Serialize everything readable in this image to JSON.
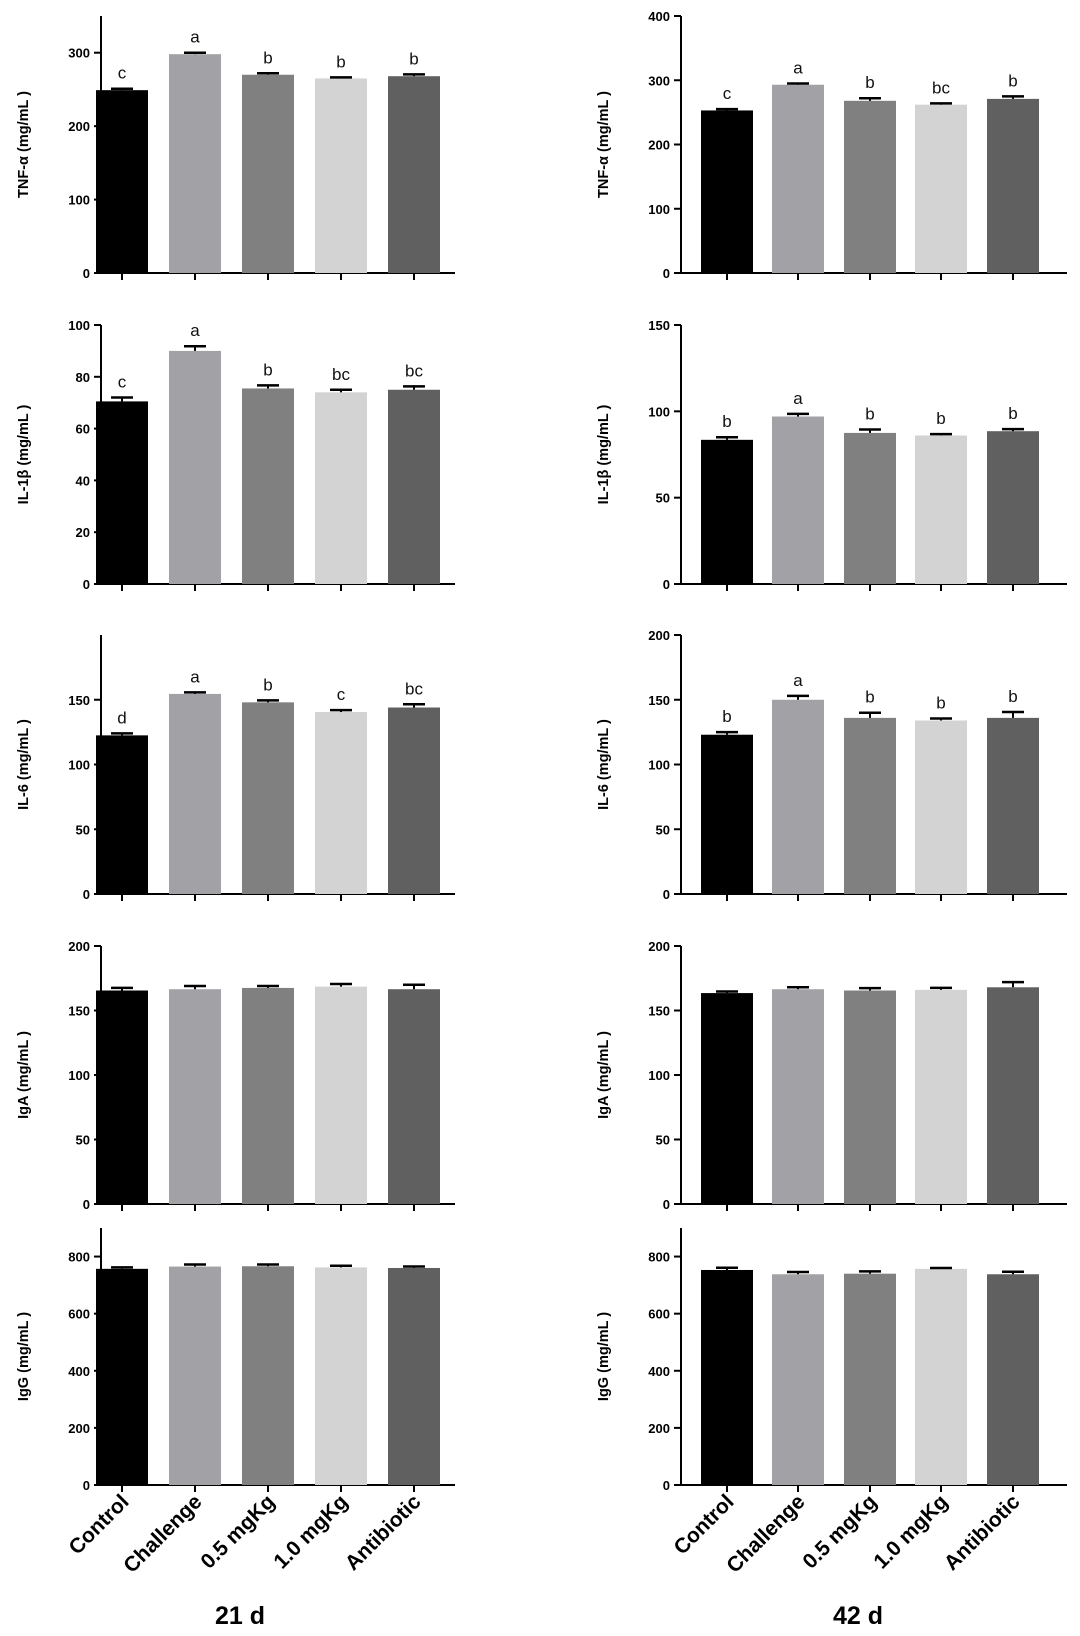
{
  "colors": [
    "#000000",
    "#a2a2a6",
    "#808080",
    "#d3d3d3",
    "#606060"
  ],
  "chart_data": {
    "type": "bar",
    "categories": [
      "Control",
      "Challenge",
      "0.5 mgKg",
      "1.0 mgKg",
      "Antibiotic"
    ],
    "columns": [
      {
        "title": "21 d",
        "panels": [
          {
            "ylabel": "TNF-α (mg/mL )",
            "ylim": [
              0,
              350
            ],
            "yticks": [
              0,
              100,
              200,
              300
            ],
            "values": [
              249,
              298,
              270,
              265,
              268
            ],
            "errors": [
              2,
              2,
              2,
              1.5,
              2.5
            ],
            "letters": [
              "c",
              "a",
              "b",
              "b",
              "b"
            ]
          },
          {
            "ylabel": "IL-1β (mg/mL )",
            "ylim": [
              0,
              100
            ],
            "yticks": [
              0,
              20,
              40,
              60,
              80,
              100
            ],
            "values": [
              70.5,
              90,
              75.5,
              74,
              75
            ],
            "errors": [
              1.5,
              1.8,
              1.2,
              1.0,
              1.3
            ],
            "letters": [
              "c",
              "a",
              "b",
              "bc",
              "bc"
            ]
          },
          {
            "ylabel": "IL-6 (mg/mL )",
            "ylim": [
              0,
              200
            ],
            "yticks": [
              0,
              50,
              100,
              150
            ],
            "values": [
              122.5,
              154.5,
              148,
              140.5,
              144
            ],
            "errors": [
              1.5,
              1.2,
              1.5,
              1.5,
              2.5
            ],
            "letters": [
              "d",
              "a",
              "b",
              "c",
              "bc"
            ]
          },
          {
            "ylabel": "IgA (mg/mL )",
            "ylim": [
              0,
              200
            ],
            "yticks": [
              0,
              50,
              100,
              150,
              200
            ],
            "values": [
              165.5,
              166.5,
              167.5,
              168.5,
              166.5
            ],
            "errors": [
              2,
              2.5,
              1.5,
              2,
              3.5
            ],
            "letters": [
              "",
              "",
              "",
              "",
              ""
            ]
          },
          {
            "ylabel": "IgG (mg/mL )",
            "ylim": [
              0,
              900
            ],
            "yticks": [
              0,
              200,
              400,
              600,
              800
            ],
            "values": [
              757,
              765,
              766,
              762,
              760
            ],
            "errors": [
              5,
              7,
              6,
              6,
              5
            ],
            "letters": [
              "",
              "",
              "",
              "",
              ""
            ]
          }
        ]
      },
      {
        "title": "42 d",
        "panels": [
          {
            "ylabel": "TNF-α (mg/mL )",
            "ylim": [
              0,
              400
            ],
            "yticks": [
              0,
              100,
              200,
              300,
              400
            ],
            "values": [
              253,
              293,
              268,
              262,
              271
            ],
            "errors": [
              2,
              2,
              4,
              2,
              4
            ],
            "letters": [
              "c",
              "a",
              "b",
              "bc",
              "b"
            ]
          },
          {
            "ylabel": "IL-1β (mg/mL )",
            "ylim": [
              0,
              150
            ],
            "yticks": [
              0,
              50,
              100,
              150
            ],
            "values": [
              83.5,
              97,
              87.5,
              86,
              88.5
            ],
            "errors": [
              1.5,
              1.5,
              2,
              0.8,
              1.2
            ],
            "letters": [
              "b",
              "a",
              "b",
              "b",
              "b"
            ]
          },
          {
            "ylabel": "IL-6 (mg/mL )",
            "ylim": [
              0,
              200
            ],
            "yticks": [
              0,
              50,
              100,
              150,
              200
            ],
            "values": [
              123,
              150,
              136,
              134,
              136
            ],
            "errors": [
              2,
              3,
              4,
              1.5,
              4.5
            ],
            "letters": [
              "b",
              "a",
              "b",
              "b",
              "b"
            ]
          },
          {
            "ylabel": "IgA (mg/mL )",
            "ylim": [
              0,
              200
            ],
            "yticks": [
              0,
              50,
              100,
              150,
              200
            ],
            "values": [
              163.5,
              166.5,
              165.5,
              166,
              168
            ],
            "errors": [
              1.2,
              1.5,
              1.8,
              1.5,
              4
            ],
            "letters": [
              "",
              "",
              "",
              "",
              ""
            ]
          },
          {
            "ylabel": "IgG (mg/mL )",
            "ylim": [
              0,
              900
            ],
            "yticks": [
              0,
              200,
              400,
              600,
              800
            ],
            "values": [
              753,
              738,
              740,
              757,
              738
            ],
            "errors": [
              8,
              8,
              8,
              3,
              9
            ],
            "letters": [
              "",
              "",
              "",
              "",
              ""
            ]
          }
        ]
      }
    ]
  }
}
